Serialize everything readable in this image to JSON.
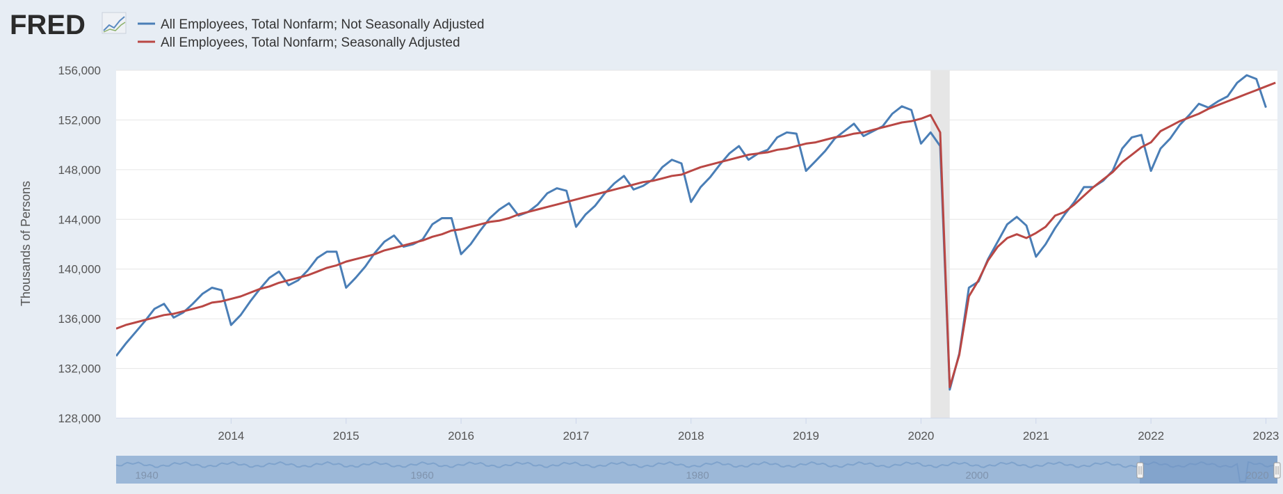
{
  "logo": {
    "text": "FRED"
  },
  "colors": {
    "not_seasonally_adjusted": "#4a7eb6",
    "seasonally_adjusted": "#b94744",
    "recession": "#e6e6e6",
    "navigator": "#7fa3cc"
  },
  "chart_data": {
    "type": "line",
    "title": "",
    "xlabel": "",
    "ylabel": "Thousands of Persons",
    "ylim": [
      128000,
      156000
    ],
    "xlim": [
      2013.0,
      2023.1
    ],
    "yticks": [
      "128,000",
      "132,000",
      "136,000",
      "140,000",
      "144,000",
      "148,000",
      "152,000",
      "156,000"
    ],
    "xticks": [
      "2014",
      "2015",
      "2016",
      "2017",
      "2018",
      "2019",
      "2020",
      "2021",
      "2022",
      "2023"
    ],
    "grid": true,
    "legend_position": "top-left",
    "recession": {
      "start": "2020-02",
      "end": "2020-04"
    },
    "series": [
      {
        "name": "All Employees, Total Nonfarm; Not Seasonally Adjusted",
        "color": "#4a7eb6",
        "start": "2013-01",
        "values": [
          133000,
          134000,
          134900,
          135800,
          136800,
          137200,
          136100,
          136500,
          137200,
          138000,
          138500,
          138300,
          135500,
          136300,
          137400,
          138400,
          139300,
          139800,
          138700,
          139100,
          139900,
          140900,
          141400,
          141400,
          138500,
          139300,
          140200,
          141300,
          142200,
          142700,
          141800,
          142000,
          142400,
          143600,
          144100,
          144100,
          141200,
          142000,
          143100,
          144100,
          144800,
          145300,
          144300,
          144600,
          145200,
          146100,
          146500,
          146300,
          143400,
          144400,
          145100,
          146100,
          146900,
          147500,
          146400,
          146700,
          147200,
          148200,
          148800,
          148500,
          145400,
          146600,
          147400,
          148400,
          149300,
          149900,
          148800,
          149300,
          149600,
          150600,
          151000,
          150900,
          147900,
          148700,
          149500,
          150500,
          151100,
          151700,
          150700,
          151100,
          151500,
          152500,
          153100,
          152800,
          150100,
          151000,
          149900,
          130300,
          133200,
          138500,
          139000,
          140800,
          142200,
          143600,
          144200,
          143500,
          141000,
          142000,
          143300,
          144400,
          145400,
          146600,
          146600,
          147100,
          147900,
          149700,
          150600,
          150800,
          147900,
          149700,
          150500,
          151600,
          152400,
          153300,
          153000,
          153500,
          153900,
          155000,
          155600,
          155300,
          153000
        ]
      },
      {
        "name": "All Employees, Total Nonfarm; Seasonally Adjusted",
        "color": "#b94744",
        "start": "2013-01",
        "values": [
          135200,
          135500,
          135700,
          135900,
          136100,
          136300,
          136400,
          136600,
          136800,
          137000,
          137300,
          137400,
          137600,
          137800,
          138100,
          138400,
          138600,
          138900,
          139100,
          139300,
          139500,
          139800,
          140100,
          140300,
          140600,
          140800,
          141000,
          141200,
          141500,
          141700,
          141900,
          142100,
          142300,
          142600,
          142800,
          143100,
          143200,
          143400,
          143600,
          143800,
          143900,
          144100,
          144400,
          144600,
          144800,
          145000,
          145200,
          145400,
          145600,
          145800,
          146000,
          146200,
          146400,
          146600,
          146800,
          147000,
          147100,
          147300,
          147500,
          147600,
          147900,
          148200,
          148400,
          148600,
          148800,
          149000,
          149200,
          149300,
          149400,
          149600,
          149700,
          149900,
          150100,
          150200,
          150400,
          150600,
          150700,
          150900,
          151000,
          151200,
          151400,
          151600,
          151800,
          151900,
          152100,
          152400,
          151000,
          130500,
          133100,
          137800,
          139100,
          140700,
          141800,
          142500,
          142800,
          142500,
          142900,
          143400,
          144300,
          144600,
          145200,
          145900,
          146600,
          147200,
          147800,
          148600,
          149200,
          149800,
          150200,
          151100,
          151500,
          151900,
          152200,
          152500,
          152900,
          153200,
          153500,
          153800,
          154100,
          154400,
          154700,
          155000
        ]
      }
    ],
    "navigator": {
      "labels": [
        "1940",
        "1960",
        "1980",
        "2000",
        "2020"
      ]
    }
  }
}
